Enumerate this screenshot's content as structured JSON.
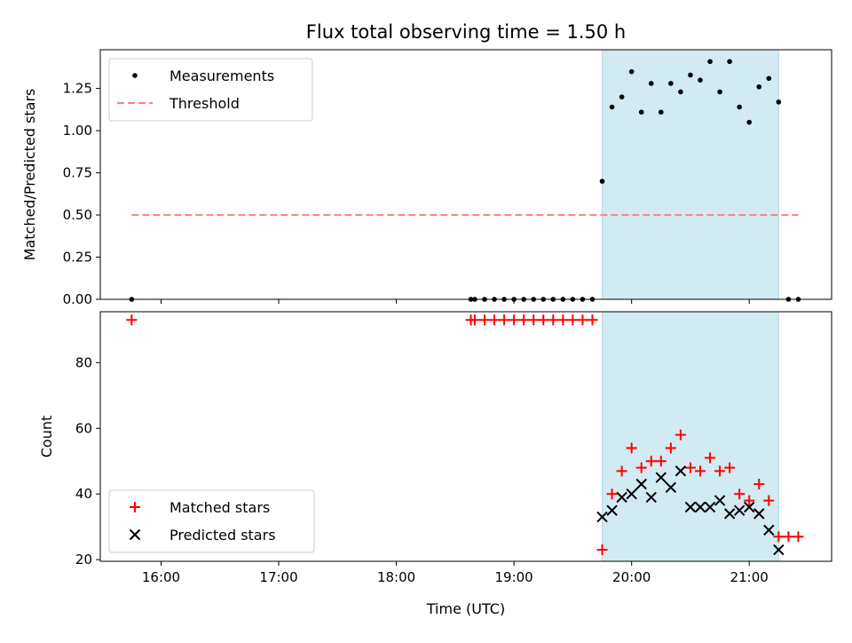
{
  "figure": {
    "title": "Flux total observing time = 1.50 h",
    "xlabel": "Time (UTC)"
  },
  "colors": {
    "shade": "#add8e6",
    "measurement": "#000000",
    "threshold": "#ff7f7f",
    "matched": "#ff0000",
    "predicted": "#000000"
  },
  "chart_data": [
    {
      "type": "scatter",
      "panel": "top",
      "ylabel": "Matched/Predicted stars",
      "xlim": [
        "15:29",
        "21:42"
      ],
      "ylim": [
        0,
        1.48
      ],
      "xticks": [
        "16:00",
        "17:00",
        "18:00",
        "19:00",
        "20:00",
        "21:00"
      ],
      "yticks": [
        "0.00",
        "0.25",
        "0.50",
        "0.75",
        "1.00",
        "1.25"
      ],
      "shaded_region": [
        "19:45",
        "21:15"
      ],
      "legend": {
        "placement": "upper-left",
        "entries": [
          "Measurements",
          "Threshold"
        ]
      },
      "series": [
        {
          "name": "Measurements",
          "marker": "dot",
          "x": [
            "15:45",
            "18:38",
            "18:40",
            "18:45",
            "18:50",
            "18:55",
            "19:00",
            "19:05",
            "19:10",
            "19:15",
            "19:20",
            "19:25",
            "19:30",
            "19:35",
            "19:40",
            "19:45",
            "19:50",
            "19:55",
            "20:00",
            "20:05",
            "20:10",
            "20:15",
            "20:20",
            "20:25",
            "20:30",
            "20:35",
            "20:40",
            "20:45",
            "20:50",
            "20:55",
            "21:00",
            "21:05",
            "21:10",
            "21:15",
            "21:20",
            "21:25"
          ],
          "y": [
            0,
            0,
            0,
            0,
            0,
            0,
            0,
            0,
            0,
            0,
            0,
            0,
            0,
            0,
            0,
            0.7,
            1.14,
            1.2,
            1.35,
            1.11,
            1.28,
            1.11,
            1.28,
            1.23,
            1.33,
            1.3,
            1.41,
            1.23,
            1.41,
            1.14,
            1.05,
            1.26,
            1.31,
            1.17,
            0,
            0
          ]
        },
        {
          "name": "Threshold",
          "style": "dashed",
          "x": [
            "15:45",
            "21:25"
          ],
          "y": [
            0.5,
            0.5
          ]
        }
      ]
    },
    {
      "type": "scatter",
      "panel": "bottom",
      "ylabel": "Count",
      "xlim": [
        "15:29",
        "21:42"
      ],
      "ylim": [
        19.5,
        95.5
      ],
      "xticks": [
        "16:00",
        "17:00",
        "18:00",
        "19:00",
        "20:00",
        "21:00"
      ],
      "yticks": [
        "20",
        "40",
        "60",
        "80"
      ],
      "shaded_region": [
        "19:45",
        "21:15"
      ],
      "legend": {
        "placement": "lower-left",
        "entries": [
          "Matched stars",
          "Predicted stars"
        ]
      },
      "series": [
        {
          "name": "Matched stars",
          "marker": "plus",
          "x": [
            "15:45",
            "18:38",
            "18:40",
            "18:45",
            "18:50",
            "18:55",
            "19:00",
            "19:05",
            "19:10",
            "19:15",
            "19:20",
            "19:25",
            "19:30",
            "19:35",
            "19:40",
            "19:45",
            "19:50",
            "19:55",
            "20:00",
            "20:05",
            "20:10",
            "20:15",
            "20:20",
            "20:25",
            "20:30",
            "20:35",
            "20:40",
            "20:45",
            "20:50",
            "20:55",
            "21:00",
            "21:05",
            "21:10",
            "21:15",
            "21:20",
            "21:25"
          ],
          "y": [
            93,
            93,
            93,
            93,
            93,
            93,
            93,
            93,
            93,
            93,
            93,
            93,
            93,
            93,
            93,
            23,
            40,
            47,
            54,
            48,
            50,
            50,
            54,
            58,
            48,
            47,
            51,
            47,
            48,
            40,
            38,
            43,
            38,
            27,
            27,
            27
          ]
        },
        {
          "name": "Predicted stars",
          "marker": "x",
          "x": [
            "19:45",
            "19:50",
            "19:55",
            "20:00",
            "20:05",
            "20:10",
            "20:15",
            "20:20",
            "20:25",
            "20:30",
            "20:35",
            "20:40",
            "20:45",
            "20:50",
            "20:55",
            "21:00",
            "21:05",
            "21:10",
            "21:15"
          ],
          "y": [
            33,
            35,
            39,
            40,
            43,
            39,
            45,
            42,
            47,
            36,
            36,
            36,
            38,
            34,
            35,
            36,
            34,
            29,
            23
          ]
        }
      ]
    }
  ]
}
